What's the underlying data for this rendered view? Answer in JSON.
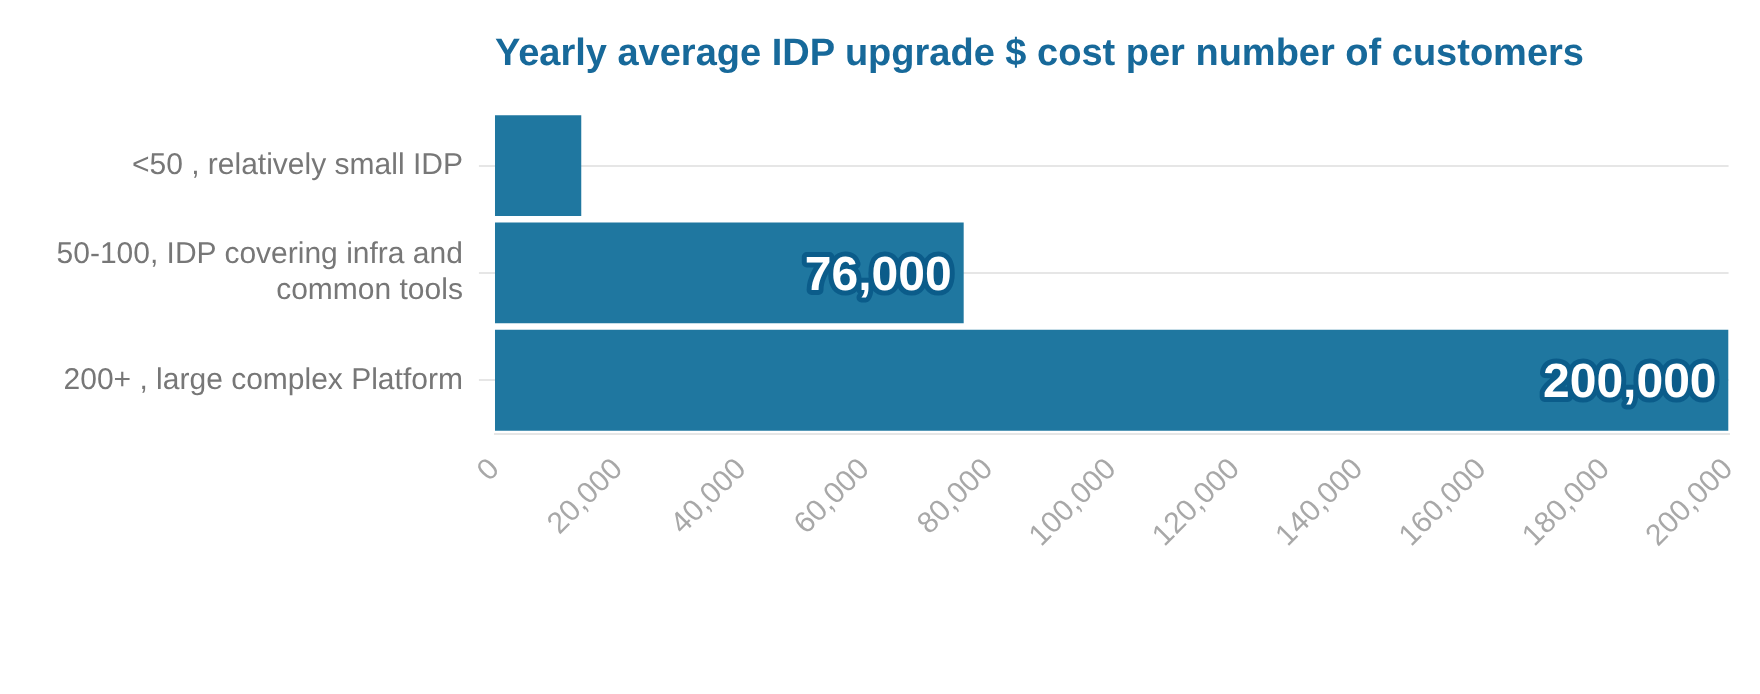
{
  "chart_data": {
    "type": "bar",
    "orientation": "horizontal",
    "title": "Yearly average IDP upgrade $ cost per number of customers",
    "categories": [
      "<50 , relatively small IDP",
      "50-100, IDP covering infra and common tools",
      "200+ , large complex Platform"
    ],
    "values": [
      14000,
      76000,
      200000
    ],
    "value_labels": [
      null,
      "76,000",
      "200,000"
    ],
    "color": "#1f77a0",
    "xlim": [
      0,
      200000
    ],
    "xticks": [
      0,
      {
        "value": 20000,
        "label": "20,000"
      },
      {
        "value": 40000,
        "label": "40,000"
      },
      {
        "value": 60000,
        "label": "60,000"
      },
      {
        "value": 80000,
        "label": "80,000"
      },
      {
        "value": 100000,
        "label": "100,000"
      },
      {
        "value": 120000,
        "label": "120,000"
      },
      {
        "value": 140000,
        "label": "140,000"
      },
      {
        "value": 160000,
        "label": "160,000"
      },
      {
        "value": 180000,
        "label": "180,000"
      },
      {
        "value": 200000,
        "label": "200,000"
      }
    ],
    "grid": "y",
    "legend": false
  }
}
